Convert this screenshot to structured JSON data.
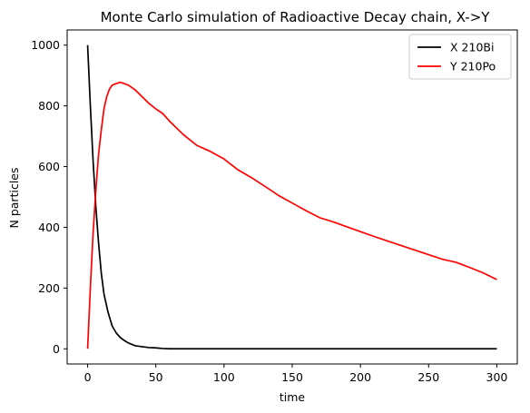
{
  "chart_data": {
    "type": "line",
    "title": "Monte Carlo simulation of Radioactive Decay chain, X->Y",
    "xlabel": "time",
    "ylabel": "N particles",
    "xlim": [
      -15,
      315
    ],
    "ylim": [
      -50,
      1050
    ],
    "xticks": [
      0,
      50,
      100,
      150,
      200,
      250,
      300
    ],
    "yticks": [
      0,
      200,
      400,
      600,
      800,
      1000
    ],
    "grid": false,
    "legend_position": "top-right",
    "series": [
      {
        "name": "X 210Bi",
        "color": "#000000",
        "x": [
          0,
          2,
          4,
          6,
          8,
          10,
          12,
          15,
          18,
          21,
          24,
          27,
          30,
          35,
          40,
          45,
          50,
          55,
          60,
          80,
          100,
          150,
          200,
          250,
          300
        ],
        "y": [
          1000,
          800,
          620,
          470,
          350,
          250,
          180,
          120,
          75,
          52,
          37,
          27,
          19,
          10,
          7,
          4,
          3,
          1,
          0,
          0,
          0,
          0,
          0,
          0,
          0
        ]
      },
      {
        "name": "Y 210Po",
        "color": "#ff0000",
        "x": [
          0,
          2,
          4,
          6,
          8,
          10,
          12,
          14,
          16,
          18,
          20,
          22,
          24,
          27,
          30,
          35,
          40,
          45,
          50,
          55,
          60,
          70,
          80,
          90,
          100,
          110,
          120,
          130,
          140,
          150,
          160,
          170,
          180,
          190,
          200,
          210,
          220,
          230,
          240,
          250,
          260,
          270,
          280,
          290,
          300
        ],
        "y": [
          0,
          200,
          380,
          520,
          640,
          720,
          790,
          830,
          855,
          868,
          872,
          875,
          878,
          873,
          868,
          852,
          830,
          808,
          790,
          775,
          750,
          706,
          670,
          650,
          625,
          590,
          564,
          535,
          505,
          480,
          455,
          432,
          418,
          402,
          386,
          370,
          355,
          340,
          325,
          310,
          295,
          285,
          268,
          250,
          228
        ]
      }
    ]
  }
}
